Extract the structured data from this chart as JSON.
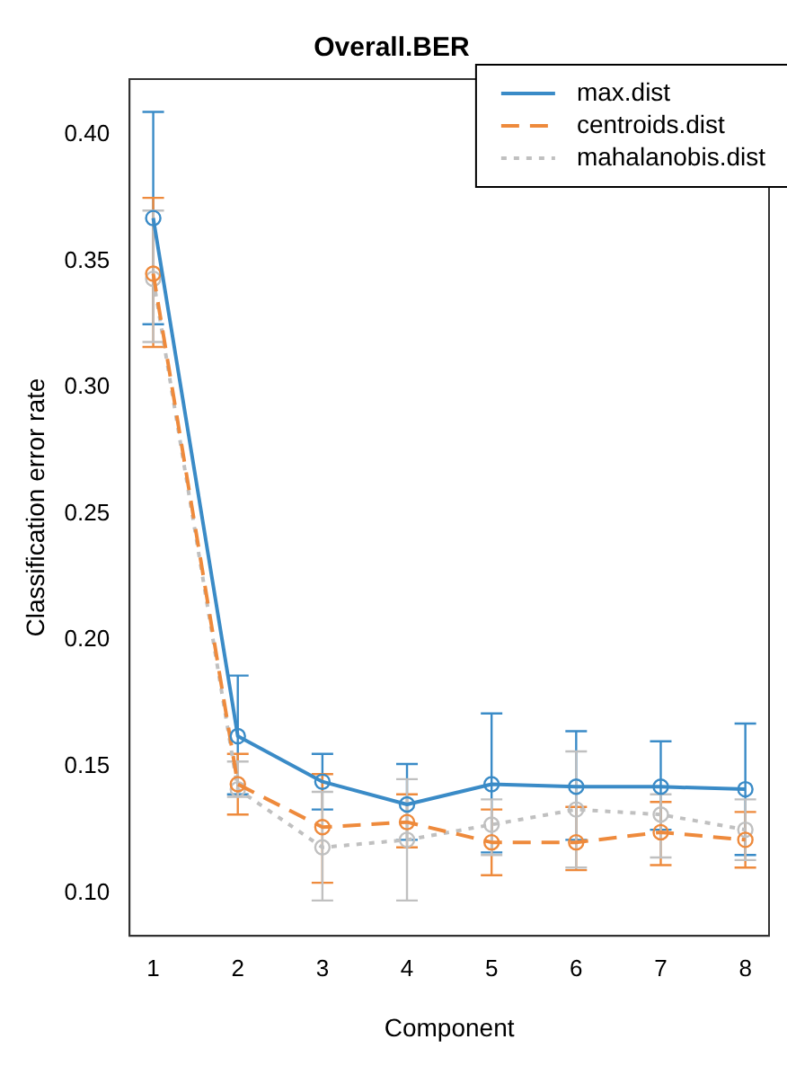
{
  "chart_data": {
    "type": "line",
    "title": "Overall.BER",
    "xlabel": "Component",
    "ylabel": "Classification error rate",
    "x": [
      1,
      2,
      3,
      4,
      5,
      6,
      7,
      8
    ],
    "xlim": [
      0.72,
      8.28
    ],
    "xticks": [
      1,
      2,
      3,
      4,
      5,
      6,
      7,
      8
    ],
    "ylim": [
      0.083,
      0.422
    ],
    "yticks": [
      {
        "value": 0.1,
        "label": "0.10"
      },
      0.15,
      {
        "value": 0.2,
        "label": "0.20"
      },
      0.25,
      {
        "value": 0.3,
        "label": "0.30"
      },
      0.35,
      {
        "value": 0.4,
        "label": "0.40"
      }
    ],
    "grid": false,
    "legend": "top right",
    "marker": "circle",
    "series": [
      {
        "name": "max.dist",
        "color": "#3a8bc7",
        "line_style": "solid",
        "values": [
          0.367,
          0.162,
          0.144,
          0.135,
          0.143,
          0.142,
          0.142,
          0.141
        ],
        "errors": [
          [
            0.325,
            0.409
          ],
          [
            0.139,
            0.186
          ],
          [
            0.133,
            0.155
          ],
          [
            0.121,
            0.151
          ],
          [
            0.116,
            0.171
          ],
          [
            0.121,
            0.164
          ],
          [
            0.125,
            0.16
          ],
          [
            0.115,
            0.167
          ]
        ]
      },
      {
        "name": "centroids.dist",
        "color": "#ee8a3c",
        "line_style": "dashed",
        "values": [
          0.345,
          0.143,
          0.126,
          0.128,
          0.12,
          0.12,
          0.124,
          0.121
        ],
        "errors": [
          [
            0.316,
            0.375
          ],
          [
            0.131,
            0.155
          ],
          [
            0.104,
            0.147
          ],
          [
            0.118,
            0.139
          ],
          [
            0.107,
            0.133
          ],
          [
            0.109,
            0.134
          ],
          [
            0.111,
            0.136
          ],
          [
            0.11,
            0.132
          ]
        ]
      },
      {
        "name": "mahalanobis.dist",
        "color": "#c0c0c0",
        "line_style": "dotted",
        "values": [
          0.343,
          0.141,
          0.118,
          0.121,
          0.127,
          0.133,
          0.131,
          0.125
        ],
        "errors": [
          [
            0.318,
            0.37
          ],
          [
            0.138,
            0.152
          ],
          [
            0.097,
            0.14
          ],
          [
            0.097,
            0.145
          ],
          [
            0.115,
            0.137
          ],
          [
            0.11,
            0.156
          ],
          [
            0.114,
            0.139
          ],
          [
            0.113,
            0.137
          ]
        ]
      }
    ]
  }
}
